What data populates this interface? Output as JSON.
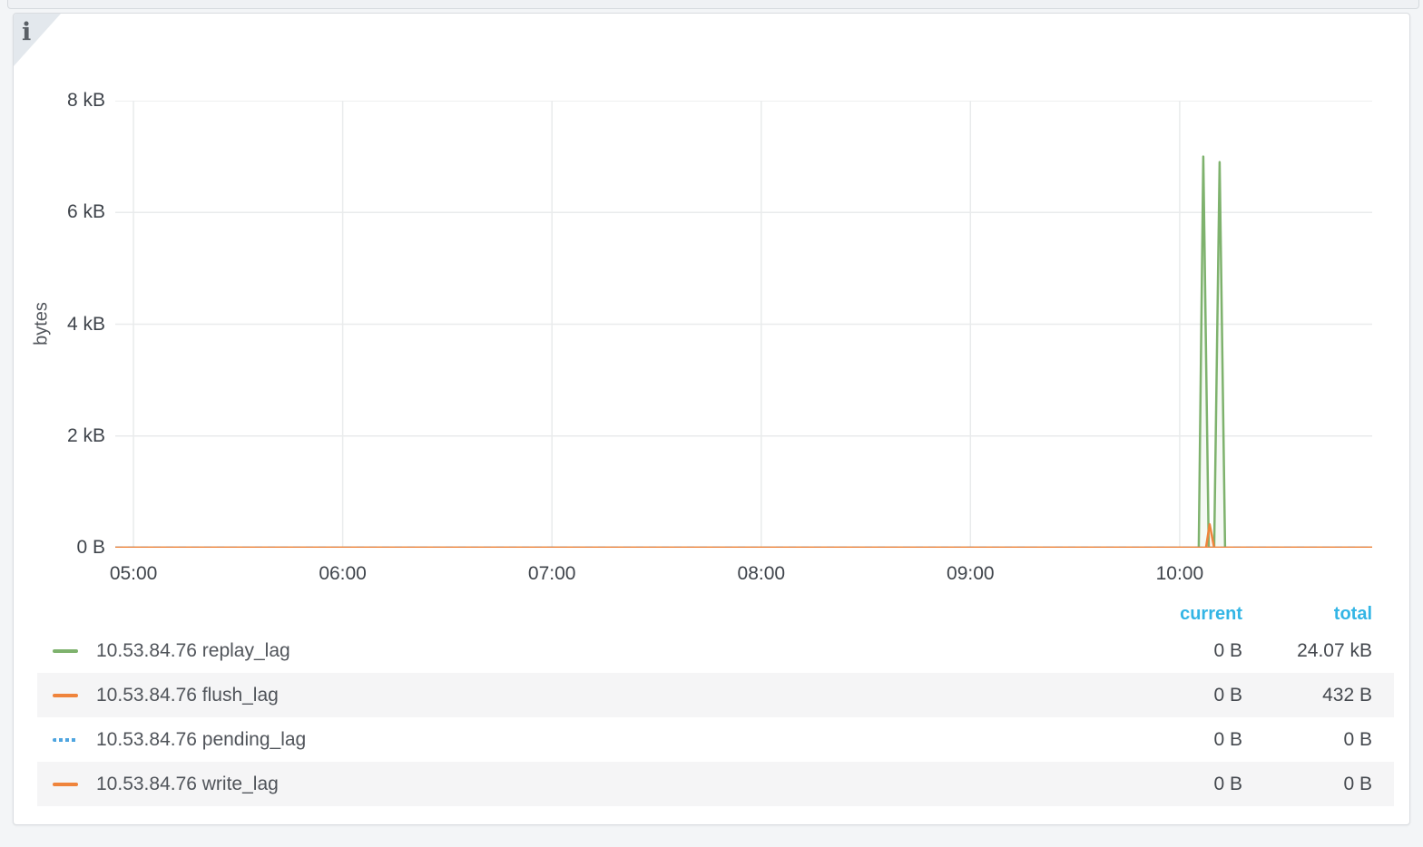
{
  "colors": {
    "green": "#7EB26D",
    "orange": "#EF843C",
    "blue": "#4FA5E0",
    "header_blue": "#33b5e5",
    "grid": "#e9ebec",
    "stripe": "#f5f5f6"
  },
  "panel": {
    "info_corner_glyph": "i",
    "legend": {
      "columns": {
        "current": "current",
        "total": "total"
      },
      "series": [
        {
          "label": "10.53.84.76 replay_lag",
          "color": "#7EB26D",
          "dashed": false,
          "current": "0 B",
          "total": "24.07 kB"
        },
        {
          "label": "10.53.84.76 flush_lag",
          "color": "#EF843C",
          "dashed": false,
          "current": "0 B",
          "total": "432 B"
        },
        {
          "label": "10.53.84.76 pending_lag",
          "color": "#4FA5E0",
          "dashed": true,
          "current": "0 B",
          "total": "0 B"
        },
        {
          "label": "10.53.84.76 write_lag",
          "color": "#EF843C",
          "dashed": false,
          "current": "0 B",
          "total": "0 B"
        }
      ]
    }
  },
  "chart_data": {
    "type": "line",
    "title": "",
    "xlabel": "",
    "ylabel": "bytes",
    "unit": "bytes",
    "grid": true,
    "legend_position": "bottom",
    "xlim_hours": [
      4.913,
      10.92
    ],
    "ylim_bytes": [
      0,
      8000
    ],
    "x_tick_hours": [
      5,
      6,
      7,
      8,
      9,
      10
    ],
    "x_tick_labels": [
      "05:00",
      "06:00",
      "07:00",
      "08:00",
      "09:00",
      "10:00"
    ],
    "y_tick_values": [
      0,
      2000,
      4000,
      6000,
      8000
    ],
    "y_tick_labels": [
      "0 B",
      "2 kB",
      "4 kB",
      "6 kB",
      "8 kB"
    ],
    "series": [
      {
        "name": "10.53.84.76 replay_lag",
        "color": "#7EB26D",
        "dashed": false,
        "fill_opacity": 0.08,
        "points_hours_bytes": [
          [
            4.913,
            0
          ],
          [
            10.091,
            0
          ],
          [
            10.113,
            7000
          ],
          [
            10.139,
            0
          ],
          [
            10.165,
            0
          ],
          [
            10.191,
            6900
          ],
          [
            10.217,
            0
          ],
          [
            10.92,
            0
          ]
        ]
      },
      {
        "name": "10.53.84.76 flush_lag",
        "color": "#EF843C",
        "dashed": false,
        "fill_opacity": 0.1,
        "points_hours_bytes": [
          [
            4.913,
            0
          ],
          [
            10.126,
            0
          ],
          [
            10.143,
            420
          ],
          [
            10.165,
            0
          ],
          [
            10.92,
            0
          ]
        ]
      },
      {
        "name": "10.53.84.76 pending_lag",
        "color": "#4FA5E0",
        "dashed": true,
        "fill_opacity": 0,
        "points_hours_bytes": [
          [
            4.913,
            0
          ],
          [
            10.92,
            0
          ]
        ]
      },
      {
        "name": "10.53.84.76 write_lag",
        "color": "#EF843C",
        "dashed": false,
        "fill_opacity": 0,
        "points_hours_bytes": [
          [
            4.913,
            0
          ],
          [
            10.92,
            0
          ]
        ]
      }
    ]
  }
}
